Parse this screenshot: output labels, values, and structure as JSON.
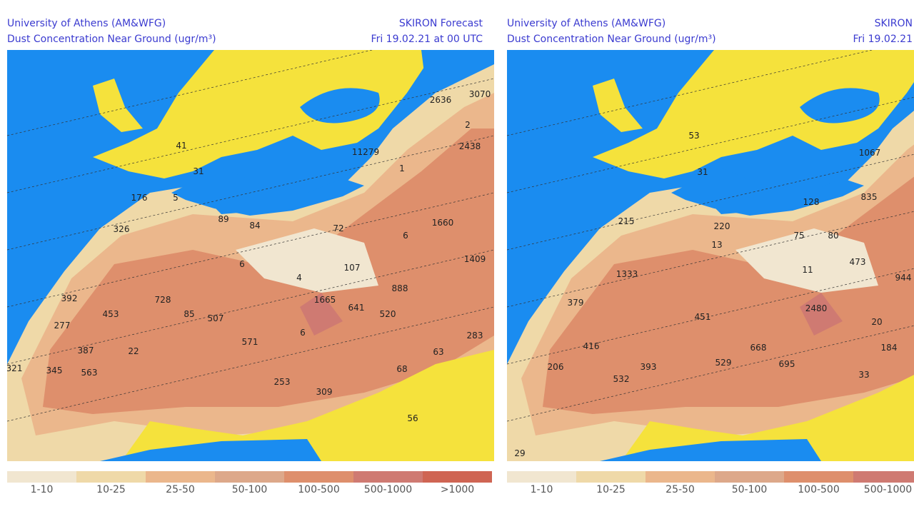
{
  "panels": [
    {
      "institution": "University of Athens (AM&WFG)",
      "title": "Dust Concentration Near Ground (ugr/m³)",
      "model": "SKIRON Forecast",
      "date": "Fri 19.02.21 at 00 UTC",
      "labels": [
        "2636",
        "3070",
        "2",
        "2438",
        "11279",
        "1",
        "41",
        "31",
        "176",
        "5",
        "326",
        "89",
        "84",
        "72",
        "6",
        "1660",
        "1409",
        "107",
        "4",
        "6",
        "888",
        "392",
        "728",
        "85",
        "507",
        "1665",
        "641",
        "520",
        "453",
        "277",
        "6",
        "571",
        "283",
        "387",
        "22",
        "63",
        "321",
        "345",
        "563",
        "68",
        "253",
        "309",
        "56"
      ]
    },
    {
      "institution": "University of Athens (AM&WFG)",
      "title": "Dust Concentration Near Ground (ugr/m³)",
      "model": "SKIRON",
      "date": "Fri 19.02.21",
      "labels": [
        "53",
        "1067",
        "31",
        "835",
        "128",
        "215",
        "220",
        "75",
        "80",
        "13",
        "473",
        "1333",
        "11",
        "944",
        "379",
        "2480",
        "451",
        "20",
        "416",
        "668",
        "184",
        "206",
        "393",
        "529",
        "695",
        "532",
        "33",
        "29"
      ]
    }
  ],
  "legend": [
    {
      "label": "1-10",
      "color": "#f1e6d0"
    },
    {
      "label": "10-25",
      "color": "#efd9a8"
    },
    {
      "label": "25-50",
      "color": "#ebb78c"
    },
    {
      "label": "50-100",
      "color": "#dda88a"
    },
    {
      "label": "100-500",
      "color": "#de8f6c"
    },
    {
      "label": "500-1000",
      "color": "#cf7a72"
    },
    {
      "label": ">1000",
      "color": "#cf6553"
    }
  ],
  "colors": {
    "sea": "#1a8cf0",
    "low": "#f5e23c"
  }
}
